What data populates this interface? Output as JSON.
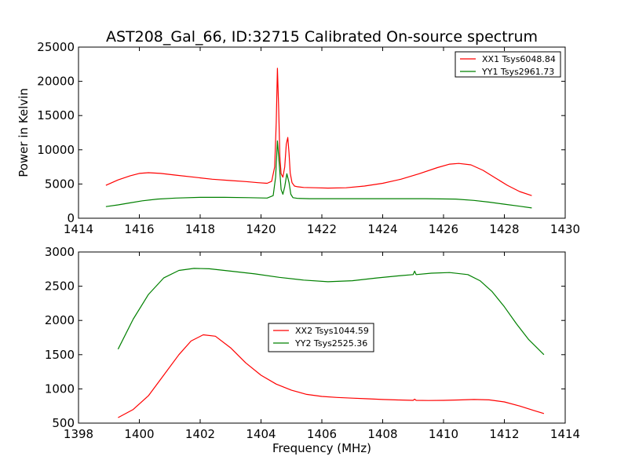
{
  "figure": {
    "title": "AST208_Gal_66, ID:32715 Calibrated On-source spectrum"
  },
  "chart_data": [
    {
      "type": "line",
      "title": "AST208_Gal_66, ID:32715 Calibrated On-source spectrum",
      "xlabel": "",
      "ylabel": "Power in Kelvin",
      "xlim": [
        1414,
        1430
      ],
      "ylim": [
        0,
        25000
      ],
      "xticks": [
        1414,
        1416,
        1418,
        1420,
        1422,
        1424,
        1426,
        1428,
        1430
      ],
      "yticks": [
        0,
        5000,
        10000,
        15000,
        20000,
        25000
      ],
      "grid": false,
      "legend_position": "top-right",
      "series": [
        {
          "name": "XX1 Tsys6048.84",
          "color": "#ff0000",
          "x": [
            1414.9,
            1415.3,
            1415.7,
            1416.0,
            1416.3,
            1416.7,
            1417.2,
            1417.8,
            1418.4,
            1419.0,
            1419.5,
            1419.9,
            1420.2,
            1420.35,
            1420.45,
            1420.5,
            1420.54,
            1420.58,
            1420.62,
            1420.66,
            1420.72,
            1420.78,
            1420.83,
            1420.88,
            1420.92,
            1420.96,
            1421.02,
            1421.1,
            1421.2,
            1421.4,
            1421.8,
            1422.2,
            1422.8,
            1423.4,
            1424.0,
            1424.6,
            1425.2,
            1425.8,
            1426.2,
            1426.5,
            1426.9,
            1427.3,
            1427.7,
            1428.1,
            1428.5,
            1428.9
          ],
          "y": [
            4800,
            5600,
            6200,
            6550,
            6650,
            6550,
            6300,
            6000,
            5700,
            5500,
            5350,
            5200,
            5100,
            5400,
            7500,
            14000,
            21900,
            16000,
            9000,
            6500,
            6000,
            7500,
            10800,
            11800,
            9500,
            6600,
            5200,
            4700,
            4600,
            4500,
            4450,
            4400,
            4450,
            4700,
            5100,
            5700,
            6500,
            7400,
            7900,
            8000,
            7800,
            7000,
            5900,
            4800,
            3900,
            3300
          ]
        },
        {
          "name": "YY1 Tsys2961.73",
          "color": "#008000",
          "x": [
            1414.9,
            1415.3,
            1415.7,
            1416.1,
            1416.6,
            1417.2,
            1418.0,
            1418.8,
            1419.6,
            1420.2,
            1420.4,
            1420.48,
            1420.54,
            1420.6,
            1420.66,
            1420.72,
            1420.78,
            1420.85,
            1420.92,
            1420.98,
            1421.05,
            1421.2,
            1421.6,
            1422.4,
            1423.4,
            1424.4,
            1425.4,
            1426.4,
            1427.0,
            1427.5,
            1428.0,
            1428.5,
            1428.9
          ],
          "y": [
            1700,
            1950,
            2250,
            2550,
            2800,
            2950,
            3050,
            3050,
            3000,
            2950,
            3300,
            6000,
            11300,
            8000,
            4200,
            3500,
            4600,
            6500,
            5200,
            3500,
            3000,
            2900,
            2850,
            2850,
            2850,
            2850,
            2850,
            2800,
            2600,
            2350,
            2050,
            1750,
            1500
          ]
        }
      ]
    },
    {
      "type": "line",
      "title": "",
      "xlabel": "Frequency (MHz)",
      "ylabel": "",
      "xlim": [
        1398,
        1414
      ],
      "ylim": [
        500,
        3000
      ],
      "xticks": [
        1398,
        1400,
        1402,
        1404,
        1406,
        1408,
        1410,
        1412,
        1414
      ],
      "yticks": [
        500,
        1000,
        1500,
        2000,
        2500,
        3000
      ],
      "grid": false,
      "legend_position": "center",
      "series": [
        {
          "name": "XX2 Tsys1044.59",
          "color": "#ff0000",
          "x": [
            1399.3,
            1399.8,
            1400.3,
            1400.8,
            1401.3,
            1401.7,
            1402.1,
            1402.5,
            1403.0,
            1403.5,
            1404.0,
            1404.5,
            1405.0,
            1405.5,
            1406.0,
            1406.5,
            1407.0,
            1407.5,
            1408.0,
            1408.5,
            1409.0,
            1409.05,
            1409.1,
            1409.5,
            1410.0,
            1410.5,
            1411.0,
            1411.5,
            1412.0,
            1412.5,
            1413.0,
            1413.3
          ],
          "y": [
            580,
            700,
            900,
            1200,
            1500,
            1700,
            1790,
            1770,
            1600,
            1380,
            1200,
            1070,
            980,
            920,
            890,
            875,
            865,
            855,
            845,
            838,
            832,
            850,
            832,
            830,
            832,
            838,
            845,
            840,
            810,
            750,
            680,
            640
          ]
        },
        {
          "name": "YY2 Tsys2525.36",
          "color": "#008000",
          "x": [
            1399.3,
            1399.8,
            1400.3,
            1400.8,
            1401.3,
            1401.8,
            1402.3,
            1403.0,
            1403.8,
            1404.6,
            1405.4,
            1406.2,
            1407.0,
            1407.8,
            1408.6,
            1409.0,
            1409.05,
            1409.1,
            1409.6,
            1410.2,
            1410.8,
            1411.2,
            1411.6,
            1412.0,
            1412.4,
            1412.8,
            1413.3
          ],
          "y": [
            1580,
            2020,
            2380,
            2620,
            2730,
            2760,
            2755,
            2720,
            2680,
            2630,
            2590,
            2565,
            2580,
            2620,
            2655,
            2670,
            2720,
            2670,
            2690,
            2700,
            2670,
            2580,
            2420,
            2200,
            1950,
            1720,
            1500
          ]
        }
      ]
    }
  ]
}
